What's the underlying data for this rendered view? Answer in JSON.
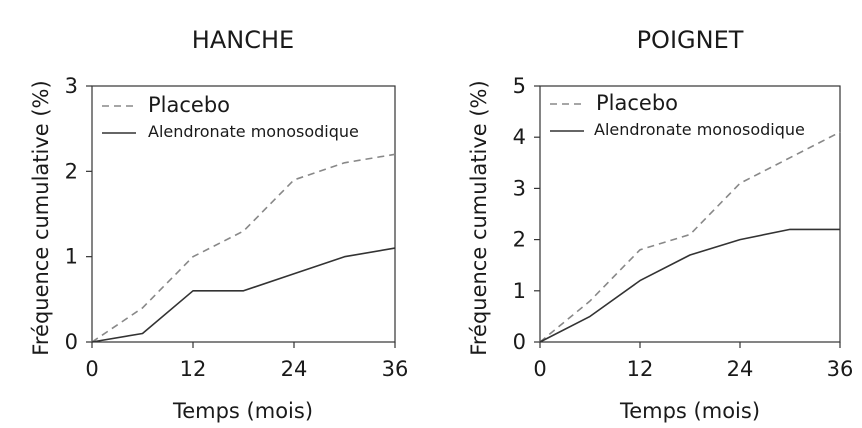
{
  "chart_data": [
    {
      "type": "line",
      "title": "HANCHE",
      "xlabel": "Temps (mois)",
      "ylabel": "Fréquence cumulative (%)",
      "xlim": [
        0,
        36
      ],
      "ylim": [
        0,
        3
      ],
      "x_ticks": [
        "0",
        "12",
        "24",
        "36"
      ],
      "y_ticks": [
        "0",
        "1",
        "2",
        "3"
      ],
      "grid": false,
      "legend_position": "top-left",
      "series": [
        {
          "name": "Placebo",
          "style": "dashed",
          "color": "#888888",
          "x": [
            0,
            6,
            12,
            18,
            24,
            30,
            36
          ],
          "y": [
            0,
            0.4,
            1.0,
            1.3,
            1.9,
            2.1,
            2.2
          ]
        },
        {
          "name": "Alendronate monosodique",
          "style": "solid",
          "color": "#333333",
          "x": [
            0,
            6,
            12,
            18,
            24,
            30,
            36
          ],
          "y": [
            0,
            0.1,
            0.6,
            0.6,
            0.8,
            1.0,
            1.1
          ]
        }
      ]
    },
    {
      "type": "line",
      "title": "POIGNET",
      "xlabel": "Temps (mois)",
      "ylabel": "Fréquence cumulative (%)",
      "xlim": [
        0,
        36
      ],
      "ylim": [
        0,
        5
      ],
      "x_ticks": [
        "0",
        "12",
        "24",
        "36"
      ],
      "y_ticks": [
        "0",
        "1",
        "2",
        "3",
        "4",
        "5"
      ],
      "grid": false,
      "legend_position": "top-left",
      "series": [
        {
          "name": "Placebo",
          "style": "dashed",
          "color": "#888888",
          "x": [
            0,
            6,
            12,
            18,
            24,
            30,
            36
          ],
          "y": [
            0,
            0.8,
            1.8,
            2.1,
            3.1,
            3.6,
            4.1
          ]
        },
        {
          "name": "Alendronate monosodique",
          "style": "solid",
          "color": "#333333",
          "x": [
            0,
            6,
            12,
            18,
            24,
            30,
            36
          ],
          "y": [
            0,
            0.5,
            1.2,
            1.7,
            2.0,
            2.2,
            2.2
          ]
        }
      ]
    }
  ]
}
